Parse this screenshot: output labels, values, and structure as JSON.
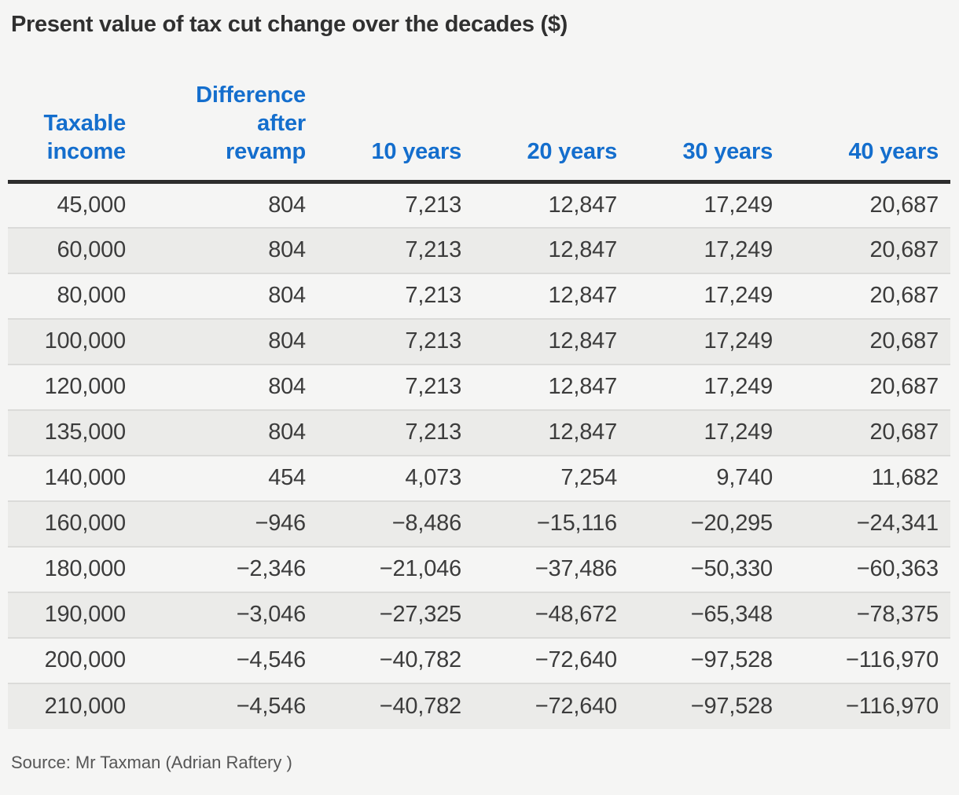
{
  "title": "Present value of tax cut change over the decades ($)",
  "source": "Source: Mr Taxman (Adrian Raftery )",
  "colors": {
    "header_blue": "#146ecd",
    "rule_dark": "#2d2d2d",
    "row_stripe": "#ebebe9",
    "row_light": "#f5f5f4",
    "row_border": "#dbdbd9",
    "title_text": "#303030",
    "body_text": "#3c3c3c",
    "source_text": "#565656"
  },
  "chart_data": {
    "type": "table",
    "title": "Present value of tax cut change over the decades ($)",
    "columns": [
      "Taxable\nincome",
      "Difference\nafter\nrevamp",
      "10 years",
      "20 years",
      "30 years",
      "40 years"
    ],
    "column_keys": [
      "taxable-income",
      "difference-after-revamp",
      "10-years",
      "20-years",
      "30-years",
      "40-years"
    ],
    "rows": [
      [
        "45,000",
        "804",
        "7,213",
        "12,847",
        "17,249",
        "20,687"
      ],
      [
        "60,000",
        "804",
        "7,213",
        "12,847",
        "17,249",
        "20,687"
      ],
      [
        "80,000",
        "804",
        "7,213",
        "12,847",
        "17,249",
        "20,687"
      ],
      [
        "100,000",
        "804",
        "7,213",
        "12,847",
        "17,249",
        "20,687"
      ],
      [
        "120,000",
        "804",
        "7,213",
        "12,847",
        "17,249",
        "20,687"
      ],
      [
        "135,000",
        "804",
        "7,213",
        "12,847",
        "17,249",
        "20,687"
      ],
      [
        "140,000",
        "454",
        "4,073",
        "7,254",
        "9,740",
        "11,682"
      ],
      [
        "160,000",
        "−946",
        "−8,486",
        "−15,116",
        "−20,295",
        "−24,341"
      ],
      [
        "180,000",
        "−2,346",
        "−21,046",
        "−37,486",
        "−50,330",
        "−60,363"
      ],
      [
        "190,000",
        "−3,046",
        "−27,325",
        "−48,672",
        "−65,348",
        "−78,375"
      ],
      [
        "200,000",
        "−4,546",
        "−40,782",
        "−72,640",
        "−97,528",
        "−116,970"
      ],
      [
        "210,000",
        "−4,546",
        "−40,782",
        "−72,640",
        "−97,528",
        "−116,970"
      ]
    ],
    "source": "Source: Mr Taxman (Adrian Raftery )"
  }
}
